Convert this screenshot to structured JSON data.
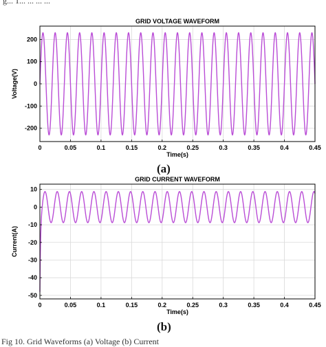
{
  "figure": {
    "caption_top": "g... 1... ... ... ...",
    "caption_bottom": "Fig 10. Grid Waveforms (a) Voltage (b) Current",
    "panel_a_label": "(a)",
    "panel_b_label": "(b)"
  },
  "colors": {
    "waveform": "#b94cd6",
    "grid": "#d9d9d9",
    "axis": "#000000"
  },
  "chart_data": [
    {
      "type": "line",
      "title": "GRID VOLTAGE WAVEFORM",
      "xlabel": "Time(s)",
      "ylabel": "Voltage(V)",
      "xlim": [
        0,
        0.45
      ],
      "ylim": [
        -260,
        260
      ],
      "xticks": [
        0,
        0.05,
        0.1,
        0.15,
        0.2,
        0.25,
        0.3,
        0.35,
        0.4,
        0.45
      ],
      "xtick_labels": [
        "0",
        "0.05",
        "0.1",
        "0.15",
        "0.2",
        "0.25",
        "0.3",
        "0.35",
        "0.4",
        "0.45"
      ],
      "yticks": [
        200,
        100,
        0,
        -100,
        -200
      ],
      "ytick_labels": [
        "200",
        "100",
        "0",
        "-100",
        "-200"
      ],
      "grid": true,
      "series": [
        {
          "amplitude": 230,
          "frequency_hz": 50,
          "offset": 0,
          "phase_deg": 0,
          "x_start": 0,
          "x_end": 0.45
        }
      ]
    },
    {
      "type": "line",
      "title": "GRID CURRENT WAVEFORM",
      "xlabel": "Time(s)",
      "ylabel": "Current(A)",
      "xlim": [
        0,
        0.45
      ],
      "ylim": [
        -52,
        13
      ],
      "xticks": [
        0,
        0.05,
        0.1,
        0.15,
        0.2,
        0.25,
        0.3,
        0.35,
        0.4,
        0.45
      ],
      "xtick_labels": [
        "0",
        "0.05",
        "0.1",
        "0.15",
        "0.2",
        "0.25",
        "0.3",
        "0.35",
        "0.4",
        "0.45"
      ],
      "yticks": [
        10,
        0,
        -10,
        -20,
        -30,
        -40,
        -50
      ],
      "ytick_labels": [
        "10",
        "0",
        "-10",
        "-20",
        "-30",
        "-40",
        "-50"
      ],
      "grid": true,
      "series": [
        {
          "amplitude": 8.8,
          "frequency_hz": 50,
          "offset": 0,
          "phase_deg": -60,
          "x_start": 0,
          "x_end": 0.45,
          "initial_transient_min": -48,
          "transient_duration_s": 0.003
        }
      ]
    }
  ]
}
